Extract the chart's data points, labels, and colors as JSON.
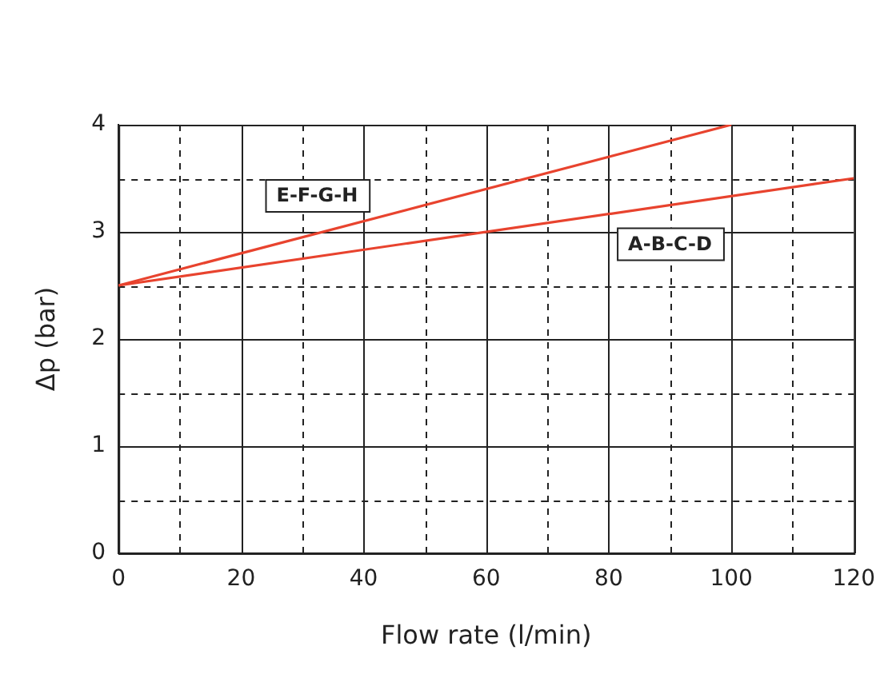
{
  "chart_data": {
    "type": "line",
    "xlabel": "Flow rate (l/min)",
    "ylabel": "Δp (bar)",
    "series": [
      {
        "name": "E-F-G-H",
        "color": "#e8432e",
        "x": [
          0,
          100
        ],
        "values": [
          2.5,
          4
        ]
      },
      {
        "name": "A-B-C-D",
        "color": "#e8432e",
        "x": [
          0,
          120
        ],
        "values": [
          2.5,
          3.5
        ]
      }
    ],
    "xlim": [
      0,
      120
    ],
    "ylim": [
      0,
      4
    ],
    "xticks": [
      0,
      {
        "value": 10,
        "label": null
      },
      20,
      {
        "value": 30,
        "label": null
      },
      40,
      {
        "value": 50,
        "label": null
      },
      60,
      {
        "value": 70,
        "label": null
      },
      80,
      {
        "value": 90,
        "label": null
      },
      100,
      {
        "value": 110,
        "label": null
      },
      120
    ],
    "yticks": [
      0,
      {
        "value": 0.5,
        "label": null
      },
      1,
      {
        "value": 1.5,
        "label": null
      },
      2,
      {
        "value": 2.5,
        "label": null
      },
      3,
      {
        "value": 3.5,
        "label": null
      },
      4
    ],
    "grid": true,
    "legend": false,
    "marker": "none",
    "line_style": "solid"
  }
}
